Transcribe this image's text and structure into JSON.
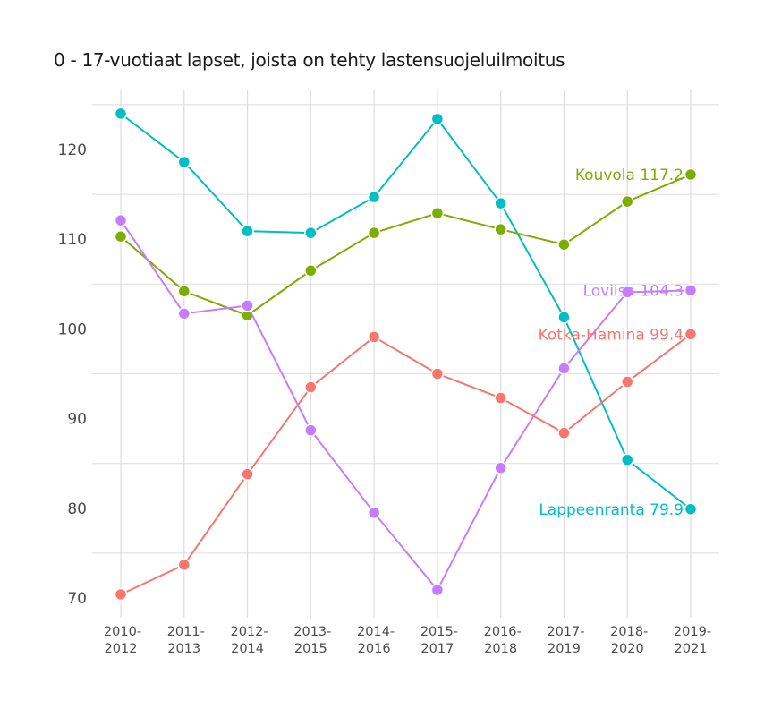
{
  "chart_data": {
    "type": "line",
    "title": "0 - 17-vuotiaat lapset, joista on tehty lastensuojeluilmoitus",
    "xlabel": "",
    "ylabel": "",
    "categories": [
      "2010-2012",
      "2011-2013",
      "2012-2014",
      "2013-2015",
      "2014-2016",
      "2015-2017",
      "2016-2018",
      "2017-2019",
      "2018-2020",
      "2019-2021"
    ],
    "category_lines": [
      [
        "2010-",
        "2012"
      ],
      [
        "2011-",
        "2013"
      ],
      [
        "2012-",
        "2014"
      ],
      [
        "2013-",
        "2015"
      ],
      [
        "2014-",
        "2016"
      ],
      [
        "2015-",
        "2017"
      ],
      [
        "2016-",
        "2018"
      ],
      [
        "2017-",
        "2019"
      ],
      [
        "2018-",
        "2020"
      ],
      [
        "2019-",
        "2021"
      ]
    ],
    "yticks": [
      70,
      80,
      90,
      100,
      110,
      120
    ],
    "ylim": [
      67,
      128
    ],
    "grid": true,
    "legend": "direct labels at last point",
    "series": [
      {
        "name": "Lappeenranta",
        "color": "#00BFC4",
        "label": "Lappeenranta 79.9",
        "values": [
          124.0,
          118.6,
          110.9,
          110.7,
          114.7,
          123.4,
          114.0,
          101.3,
          85.4,
          79.9
        ]
      },
      {
        "name": "Kouvola",
        "color": "#7CAE00",
        "label": "Kouvola 117.2",
        "values": [
          110.3,
          104.2,
          101.5,
          106.5,
          110.7,
          112.9,
          111.1,
          109.4,
          114.2,
          117.2
        ]
      },
      {
        "name": "Loviisa",
        "color": "#C77CFF",
        "label": "Loviisa 104.3",
        "values": [
          112.1,
          101.7,
          102.6,
          88.7,
          79.5,
          70.9,
          84.5,
          95.6,
          104.1,
          104.3
        ]
      },
      {
        "name": "Kotka-Hamina",
        "color": "#F8766D",
        "label": "Kotka-Hamina 99.4",
        "values": [
          70.4,
          73.7,
          83.8,
          93.5,
          99.1,
          95.0,
          92.3,
          88.4,
          94.1,
          99.4
        ]
      }
    ]
  }
}
